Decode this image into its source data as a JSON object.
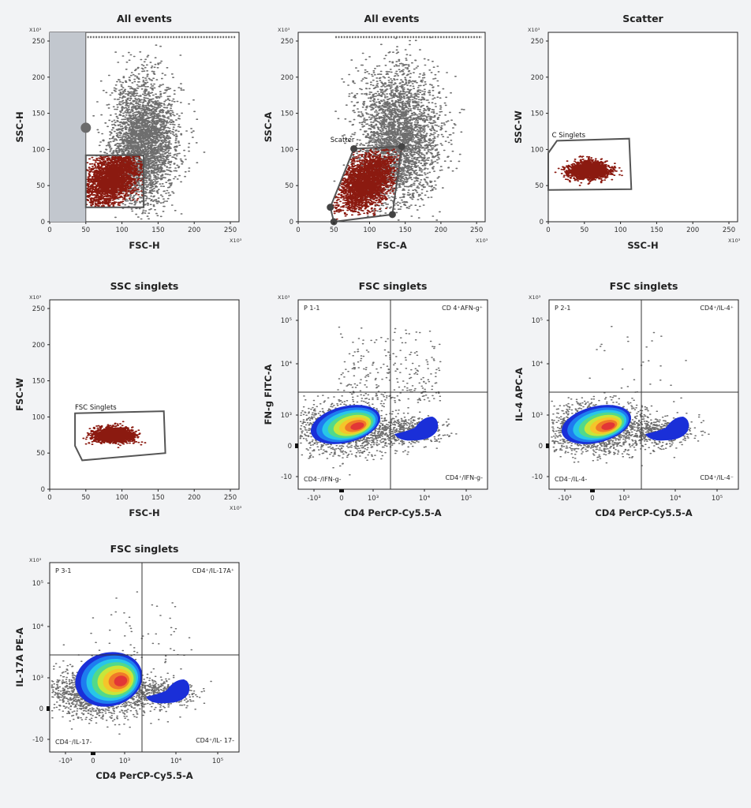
{
  "chart_data": [
    {
      "type": "scatter",
      "title": "All events",
      "xlabel": "FSC-H",
      "ylabel": "SSC-H",
      "xlim": [
        0,
        262
      ],
      "ylim": [
        0,
        262
      ],
      "scale": "linear",
      "multiplier": "X10³",
      "xticks": [
        "0",
        "50",
        "100",
        "150",
        "200",
        "250"
      ],
      "yticks": [
        "0",
        "50",
        "100",
        "150",
        "200",
        "250"
      ],
      "excluded_region": {
        "x": [
          0,
          50
        ]
      },
      "gate": {
        "label": "",
        "points": [
          [
            50,
            20
          ],
          [
            50,
            92
          ],
          [
            130,
            92
          ],
          [
            130,
            20
          ]
        ]
      },
      "population": {
        "center": [
          130,
          110
        ],
        "spread": [
          22,
          40
        ],
        "gated_center": [
          85,
          60
        ]
      }
    },
    {
      "type": "scatter",
      "title": "All events",
      "xlabel": "FSC-A",
      "ylabel": "SSC-A",
      "xlim": [
        0,
        262
      ],
      "ylim": [
        0,
        262
      ],
      "scale": "linear",
      "multiplier": "X10³",
      "xticks": [
        "0",
        "50",
        "100",
        "150",
        "200",
        "250"
      ],
      "yticks": [
        "0",
        "50",
        "100",
        "150",
        "200",
        "250"
      ],
      "gate": {
        "label": "Scatter",
        "points": [
          [
            78,
            101
          ],
          [
            145,
            104
          ],
          [
            132,
            10
          ],
          [
            50,
            0
          ],
          [
            45,
            20
          ]
        ]
      },
      "population": {
        "center": [
          140,
          120
        ],
        "spread": [
          28,
          45
        ],
        "gated_center": [
          95,
          55
        ]
      }
    },
    {
      "type": "scatter",
      "title": "Scatter",
      "xlabel": "SSC-H",
      "ylabel": "SSC-W",
      "xlim": [
        0,
        262
      ],
      "ylim": [
        0,
        262
      ],
      "scale": "linear",
      "multiplier": "X10³",
      "xticks": [
        "0",
        "50",
        "100",
        "150",
        "200",
        "250"
      ],
      "yticks": [
        "0",
        "50",
        "100",
        "150",
        "200",
        "250"
      ],
      "gate": {
        "label": "C Singlets",
        "points": [
          [
            0,
            95
          ],
          [
            12,
            112
          ],
          [
            112,
            115
          ],
          [
            115,
            45
          ],
          [
            0,
            44
          ]
        ]
      },
      "population": {
        "center": [
          55,
          72
        ],
        "spread": [
          25,
          10
        ]
      }
    },
    {
      "type": "scatter",
      "title": "SSC singlets",
      "xlabel": "FSC-H",
      "ylabel": "FSC-W",
      "xlim": [
        0,
        262
      ],
      "ylim": [
        0,
        262
      ],
      "scale": "linear",
      "multiplier": "X10³",
      "xticks": [
        "0",
        "50",
        "100",
        "150",
        "200",
        "250"
      ],
      "yticks": [
        "0",
        "50",
        "100",
        "150",
        "200",
        "250"
      ],
      "gate": {
        "label": "FSC Singlets",
        "points": [
          [
            35,
            105
          ],
          [
            158,
            108
          ],
          [
            160,
            50
          ],
          [
            45,
            40
          ],
          [
            35,
            60
          ]
        ]
      },
      "population": {
        "center": [
          88,
          76
        ],
        "spread": [
          25,
          8
        ]
      }
    },
    {
      "type": "density",
      "title": "FSC singlets",
      "xlabel": "CD4 PerCP-Cy5.5-A",
      "ylabel": "FN-g FITC-A",
      "scale": "biexponential",
      "multiplier": "X10³",
      "xticks": [
        "-10³",
        "0",
        "10³",
        "10⁴",
        "10⁵"
      ],
      "yticks": [
        "-10",
        "0",
        "10³",
        "10⁴",
        "10⁵"
      ],
      "quadrant_label": "P 1-1",
      "quadrants": {
        "top_left": "",
        "top_right": "CD 4⁺AFN-g⁺",
        "bottom_left": "CD4⁻/IFN-g-",
        "bottom_right": "CD4⁺/IFN-g-"
      }
    },
    {
      "type": "density",
      "title": "FSC singlets",
      "xlabel": "CD4 PerCP-Cy5.5-A",
      "ylabel": "IL-4 APC-A",
      "scale": "biexponential",
      "multiplier": "X10³",
      "xticks": [
        "-10³",
        "0",
        "10³",
        "10⁴",
        "10⁵"
      ],
      "yticks": [
        "-10",
        "0",
        "10³",
        "10⁴",
        "10⁵"
      ],
      "quadrant_label": "P 2-1",
      "quadrants": {
        "top_left": "",
        "top_right": "CD4⁺/IL-4⁺",
        "bottom_left": "CD4⁻/IL-4-",
        "bottom_right": "CD4⁺/IL-4⁻"
      }
    },
    {
      "type": "density",
      "title": "FSC singlets",
      "xlabel": "CD4 PerCP-Cy5.5-A",
      "ylabel": "IL-17A PE-A",
      "scale": "biexponential",
      "multiplier": "X10³",
      "xticks": [
        "-10³",
        "0",
        "10³",
        "10⁴",
        "10⁵"
      ],
      "yticks": [
        "-10",
        "0",
        "10³",
        "10⁴",
        "10⁵"
      ],
      "quadrant_label": "P 3-1",
      "quadrants": {
        "top_left": "",
        "top_right": "CD4⁺/IL-17A⁺",
        "bottom_left": "CD4⁻/IL-17-",
        "bottom_right": "CD4⁺/IL- 17-"
      }
    }
  ],
  "colors": {
    "events": "#6e6e6e",
    "gated": "#8b1a10",
    "gate_line": "#555555",
    "excluded": "#c2c7ce",
    "density": [
      "#1a2fd8",
      "#1e7cf0",
      "#27c6e8",
      "#52d98a",
      "#c8e63a",
      "#f5c52a",
      "#f07a28",
      "#e23636"
    ]
  }
}
